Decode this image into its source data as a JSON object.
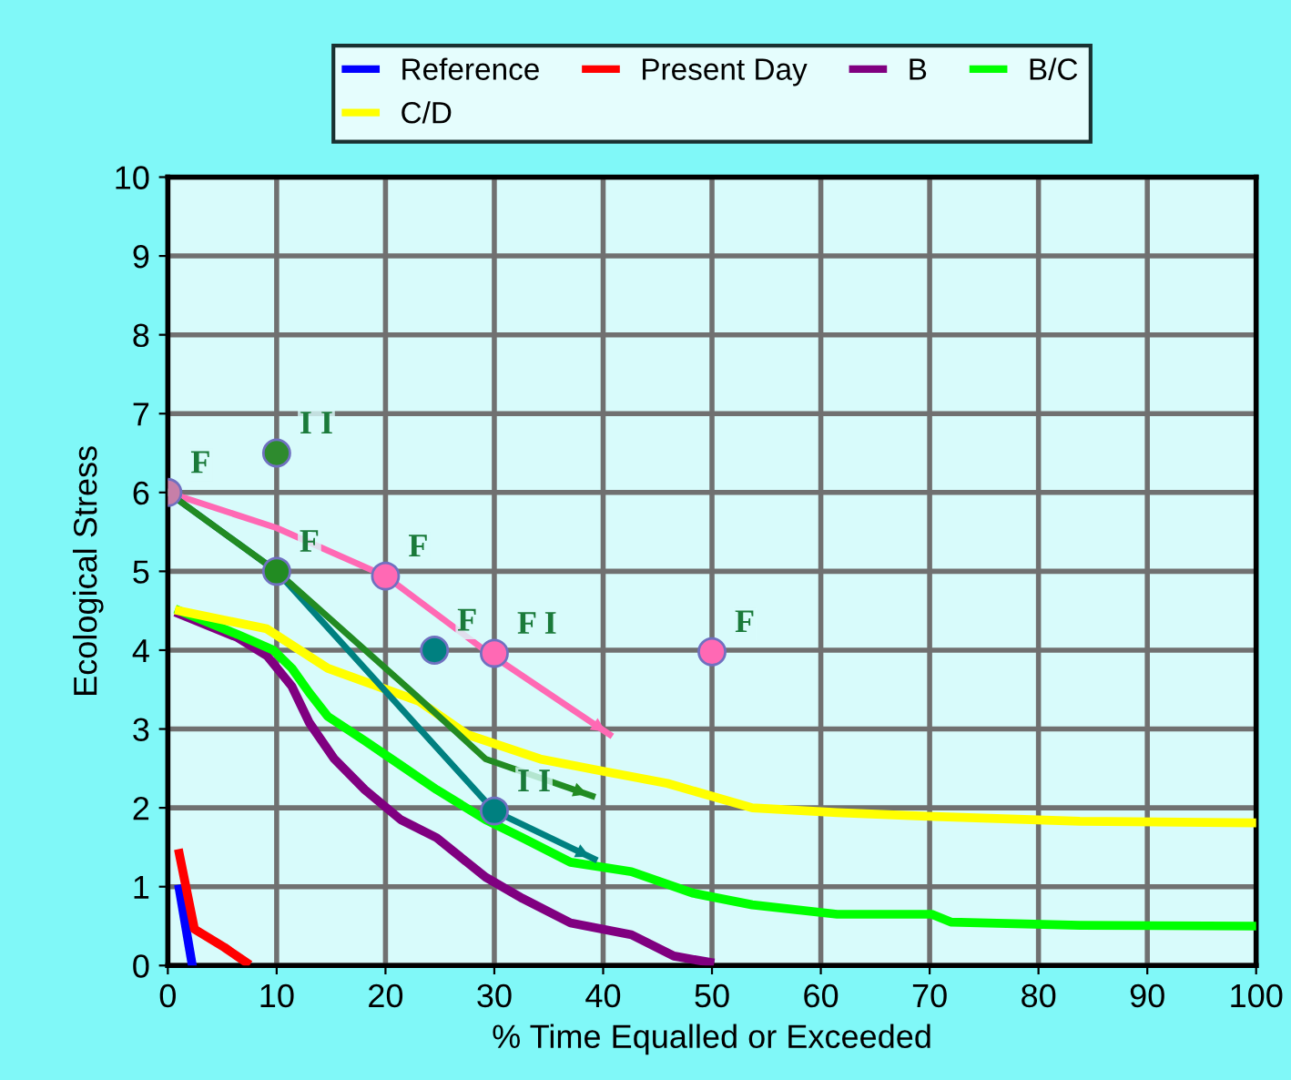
{
  "chart_data": {
    "type": "line",
    "xlabel": "% Time Equalled or Exceeded",
    "ylabel": "Ecological Stress",
    "xlim": [
      0,
      100
    ],
    "ylim": [
      0,
      10
    ],
    "xticks": [
      0,
      10,
      20,
      30,
      40,
      50,
      60,
      70,
      80,
      90,
      100
    ],
    "yticks": [
      0,
      1,
      2,
      3,
      4,
      5,
      6,
      7,
      8,
      9,
      10
    ],
    "grid": true,
    "legend": "top",
    "series": [
      {
        "name": "Reference",
        "color": "#0000ff",
        "x": [
          1.05,
          2.2
        ],
        "values": [
          0.97,
          0.04
        ]
      },
      {
        "name": "Present Day",
        "color": "#ff0000",
        "x": [
          1.05,
          2.45,
          5.2,
          7.2
        ],
        "values": [
          1.42,
          0.46,
          0.23,
          0.04
        ]
      },
      {
        "name": "B",
        "color": "#800080",
        "x": [
          1.05,
          6.4,
          9.1,
          11.4,
          13,
          15.3,
          18.1,
          21.4,
          24.7,
          29.2,
          32.6,
          37,
          42.6,
          46.5,
          49.8
        ],
        "values": [
          4.46,
          4.16,
          3.93,
          3.54,
          3.08,
          2.62,
          2.23,
          1.85,
          1.62,
          1.12,
          0.85,
          0.54,
          0.39,
          0.12,
          0.04
        ]
      },
      {
        "name": "B/C",
        "color": "#00ff00",
        "x": [
          1.05,
          6.4,
          9.7,
          11.4,
          13,
          14.7,
          18.1,
          21.4,
          24.7,
          29.2,
          32.6,
          37,
          42.6,
          48.2,
          53.7,
          61.5,
          70.2,
          72,
          83.8,
          100
        ],
        "values": [
          4.5,
          4.2,
          4.0,
          3.77,
          3.46,
          3.16,
          2.85,
          2.54,
          2.23,
          1.85,
          1.62,
          1.31,
          1.19,
          0.92,
          0.77,
          0.65,
          0.65,
          0.55,
          0.51,
          0.5
        ]
      },
      {
        "name": "C/D",
        "color": "#ffff00",
        "x": [
          1.05,
          9.1,
          14.7,
          23.1,
          27.5,
          34.2,
          39.8,
          45.9,
          53.7,
          61.5,
          70.4,
          83.8,
          100
        ],
        "values": [
          4.5,
          4.27,
          3.77,
          3.35,
          2.93,
          2.62,
          2.47,
          2.31,
          2.0,
          1.94,
          1.89,
          1.83,
          1.81
        ]
      },
      {
        "color": "#ff69b4",
        "x": [
          0,
          10,
          20,
          29.5,
          40.6
        ],
        "values": [
          6.0,
          5.55,
          4.94,
          3.96,
          2.93
        ]
      },
      {
        "color": "#008080",
        "x": [
          0,
          10,
          30,
          39.2
        ],
        "values": [
          6.0,
          5.0,
          1.96,
          1.35
        ]
      },
      {
        "color": "#228b22",
        "x": [
          0,
          10,
          23.1,
          29.2,
          39
        ],
        "values": [
          6.0,
          5.0,
          3.39,
          2.62,
          2.15
        ]
      },
      {
        "type": "scatter",
        "x": [
          0,
          10,
          10,
          20,
          24.5,
          30,
          30,
          50
        ],
        "values": [
          6.0,
          6.5,
          5.0,
          4.94,
          4.0,
          3.96,
          1.96,
          3.98
        ],
        "colors": [
          "#c77fa8",
          "#2e8b2e",
          "#228b22",
          "#ff69b4",
          "#008080",
          "#ff69b4",
          "#008080",
          "#ff69b4"
        ]
      }
    ],
    "annotations": [
      {
        "text": "F",
        "x": 0,
        "y": 6.0
      },
      {
        "text": "I I",
        "x": 10,
        "y": 6.5
      },
      {
        "text": "F",
        "x": 20,
        "y": 4.94
      },
      {
        "text": "F",
        "x": 10,
        "y": 5.0
      },
      {
        "text": "F",
        "x": 24.5,
        "y": 4.0
      },
      {
        "text": "F I",
        "x": 30,
        "y": 3.96
      },
      {
        "text": "I I",
        "x": 30,
        "y": 1.96
      },
      {
        "text": "F",
        "x": 50,
        "y": 3.98
      }
    ]
  }
}
